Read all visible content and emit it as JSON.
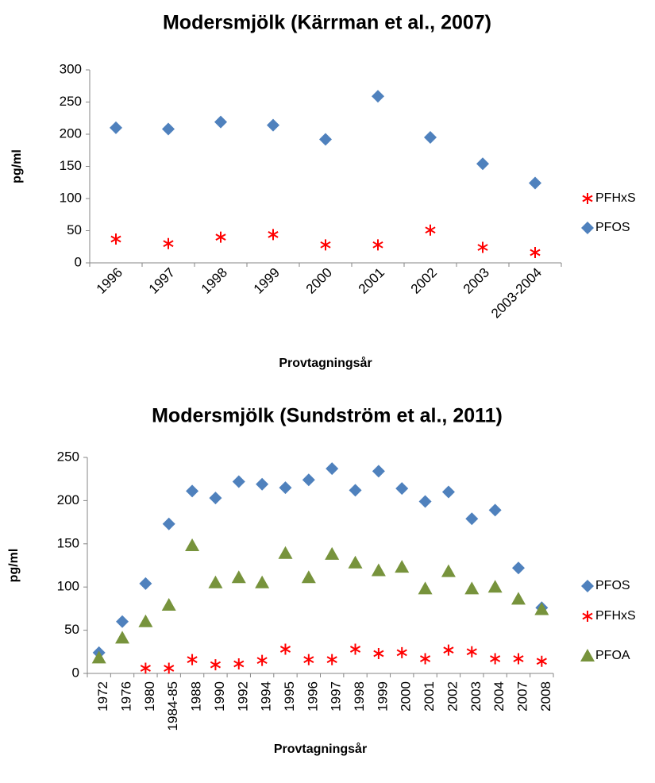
{
  "chart_data": [
    {
      "type": "scatter",
      "title": "Modersmjölk (Kärrman et al., 2007)",
      "x_label": "Provtagningsår",
      "y_label": "pg/ml",
      "categories": [
        "1996",
        "1997",
        "1998",
        "1999",
        "2000",
        "2001",
        "2002",
        "2003",
        "2003-2004"
      ],
      "series": [
        {
          "name": "PFHxS",
          "color": "#ff0000",
          "marker": "star",
          "values": [
            37,
            30,
            40,
            44,
            28,
            28,
            51,
            24,
            16
          ]
        },
        {
          "name": "PFOS",
          "color": "#4f81bd",
          "marker": "diamond",
          "values": [
            210,
            208,
            219,
            214,
            192,
            259,
            195,
            154,
            124
          ]
        }
      ],
      "ylim": [
        0,
        300
      ],
      "yticks": [
        0,
        50,
        100,
        150,
        200,
        250,
        300
      ],
      "legend": "right"
    },
    {
      "type": "scatter",
      "title": "Modersmjölk (Sundström et al., 2011)",
      "x_label": "Provtagningsår",
      "y_label": "pg/ml",
      "categories": [
        "1972",
        "1976",
        "1980",
        "1984-85",
        "1988",
        "1990",
        "1992",
        "1994",
        "1995",
        "1996",
        "1997",
        "1998",
        "1999",
        "2000",
        "2001",
        "2002",
        "2003",
        "2004",
        "2007",
        "2008"
      ],
      "series": [
        {
          "name": "PFOS",
          "color": "#4f81bd",
          "marker": "diamond",
          "values": [
            24,
            60,
            104,
            173,
            211,
            203,
            222,
            219,
            215,
            224,
            237,
            212,
            234,
            214,
            199,
            210,
            179,
            189,
            122,
            76
          ]
        },
        {
          "name": "PFHxS",
          "color": "#ff0000",
          "marker": "star",
          "values": [
            null,
            null,
            6,
            6,
            16,
            10,
            11,
            15,
            28,
            16,
            16,
            28,
            23,
            24,
            17,
            27,
            25,
            17,
            17,
            14
          ]
        },
        {
          "name": "PFOA",
          "color": "#77933c",
          "marker": "triangle",
          "values": [
            18,
            41,
            60,
            79,
            148,
            105,
            111,
            105,
            139,
            111,
            138,
            128,
            119,
            123,
            98,
            118,
            98,
            100,
            86,
            74
          ]
        }
      ],
      "ylim": [
        0,
        250
      ],
      "yticks": [
        0,
        50,
        100,
        150,
        200,
        250
      ],
      "legend": "right"
    }
  ]
}
